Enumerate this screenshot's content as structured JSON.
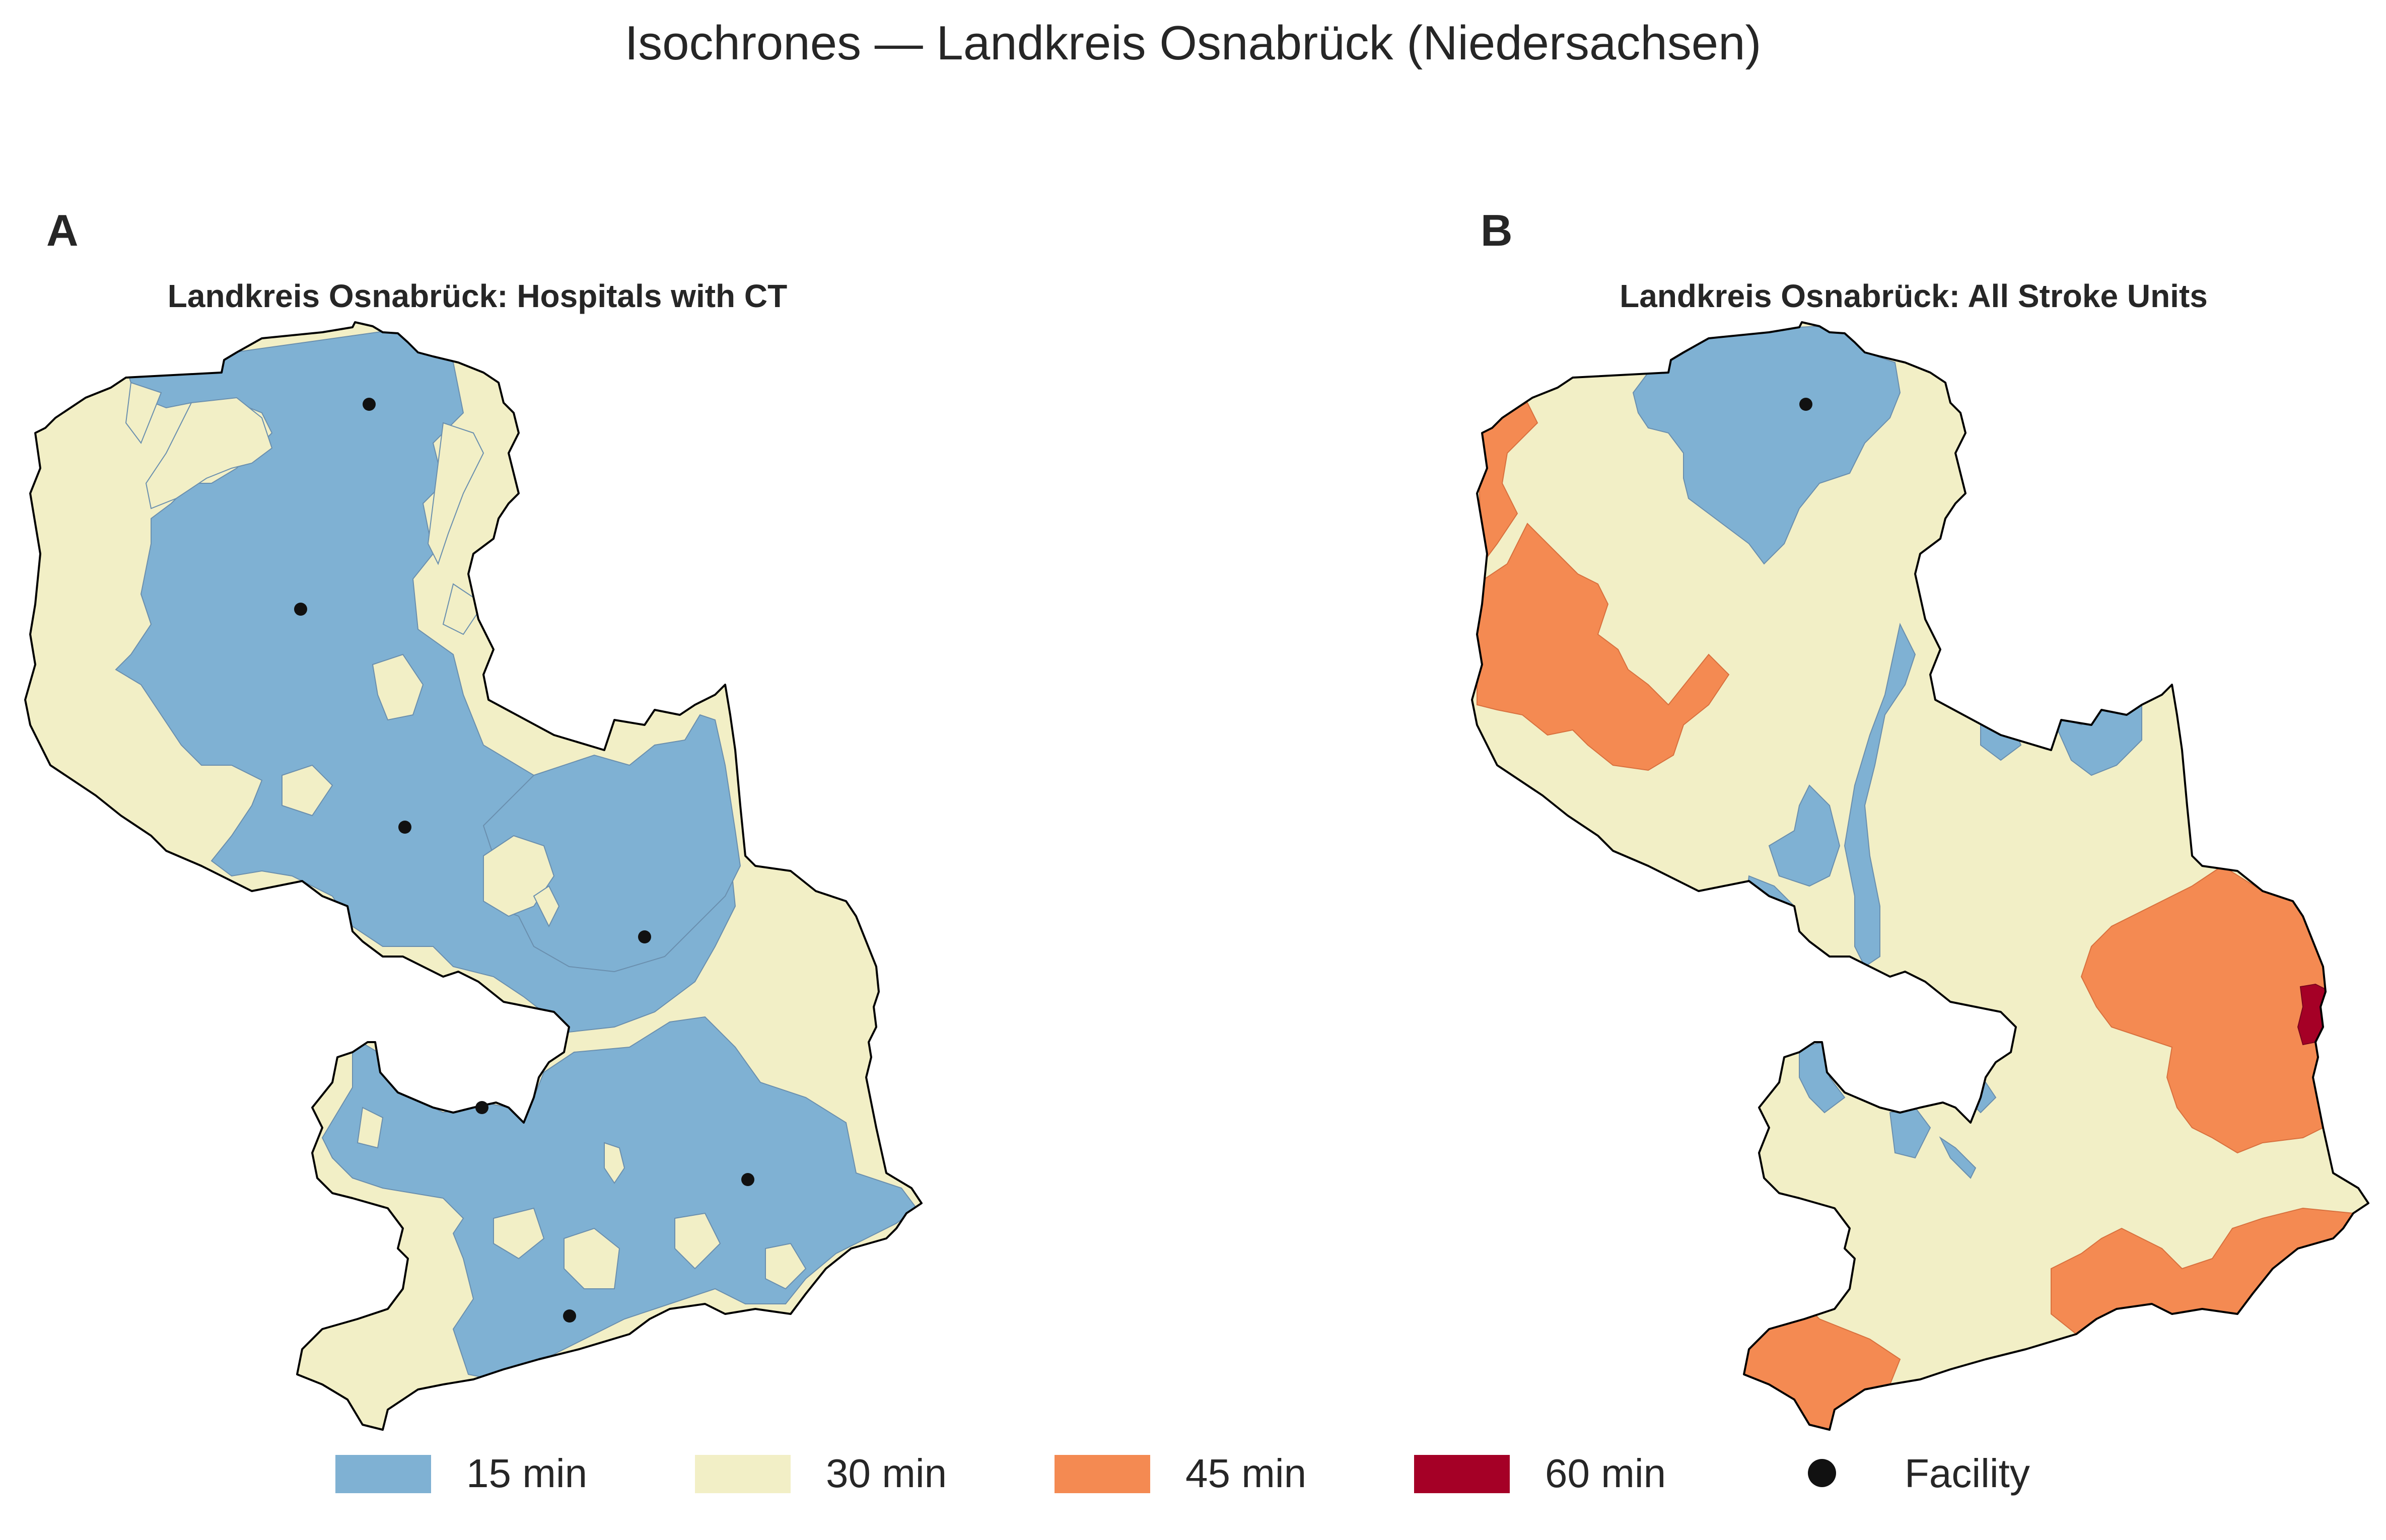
{
  "figure": {
    "title": "Isochrones — Landkreis Osnabrück (Niedersachsen)"
  },
  "panels": [
    {
      "letter": "A",
      "title": "Landkreis Osnabrück: Hospitals with CT",
      "facilities_count": 7
    },
    {
      "letter": "B",
      "title": "Landkreis Osnabrück: All Stroke Units",
      "facilities_count": 1
    }
  ],
  "legend": {
    "items": [
      {
        "label": "15 min",
        "color": "#7fb1d3",
        "kind": "patch"
      },
      {
        "label": "30 min",
        "color": "#f2efc6",
        "kind": "patch"
      },
      {
        "label": "45 min",
        "color": "#f48a52",
        "kind": "patch"
      },
      {
        "label": "60 min",
        "color": "#a50026",
        "kind": "patch"
      },
      {
        "label": "Facility",
        "color": "#111111",
        "kind": "marker"
      }
    ]
  },
  "colors": {
    "c15": "#7fb1d3",
    "c30": "#f2efc6",
    "c45": "#f48a52",
    "c60": "#a50026",
    "outline": "#000000",
    "facility": "#111111"
  }
}
